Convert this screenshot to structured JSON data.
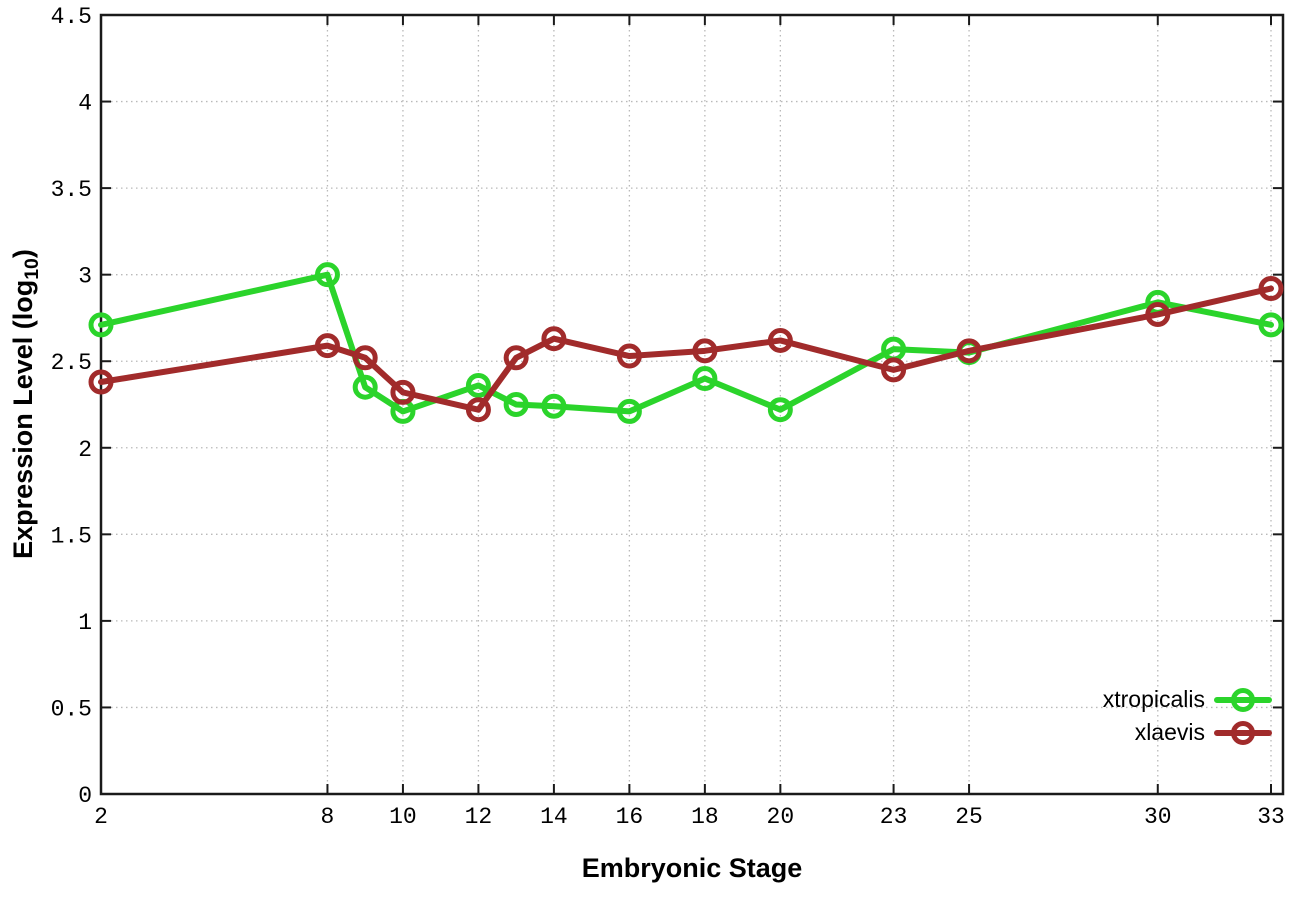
{
  "chart_data": {
    "type": "line",
    "title": "",
    "xlabel": "Embryonic Stage",
    "ylabel": "Expression Level (log10)",
    "ylabel_parts": {
      "pre": "Expression Level (log",
      "sub": "10",
      "post": ")"
    },
    "x": [
      2,
      8,
      9,
      10,
      12,
      13,
      14,
      16,
      18,
      20,
      23,
      25,
      30,
      33
    ],
    "series": [
      {
        "name": "xtropicalis",
        "color": "#2bd42b",
        "marker": "open-circle",
        "values": [
          2.71,
          3.0,
          2.35,
          2.21,
          2.36,
          2.25,
          2.24,
          2.21,
          2.4,
          2.22,
          2.57,
          2.55,
          2.84,
          2.71
        ]
      },
      {
        "name": "xlaevis",
        "color": "#a12b2b",
        "marker": "open-circle",
        "values": [
          2.38,
          2.59,
          2.52,
          2.32,
          2.22,
          2.52,
          2.63,
          2.53,
          2.56,
          2.62,
          2.45,
          2.56,
          2.77,
          2.92
        ]
      }
    ],
    "xticks": [
      2,
      8,
      10,
      12,
      14,
      16,
      18,
      20,
      23,
      25,
      30,
      33
    ],
    "yticks": [
      0,
      0.5,
      1,
      1.5,
      2,
      2.5,
      3,
      3.5,
      4,
      4.5
    ],
    "xlim": [
      2,
      33
    ],
    "ylim": [
      0,
      4.5
    ],
    "grid": true,
    "legend_position": "inside-bottom-right",
    "colors": {
      "background": "#ffffff",
      "axis": "#1a1a1a",
      "grid": "#b9b9b9",
      "text": "#000000"
    }
  }
}
